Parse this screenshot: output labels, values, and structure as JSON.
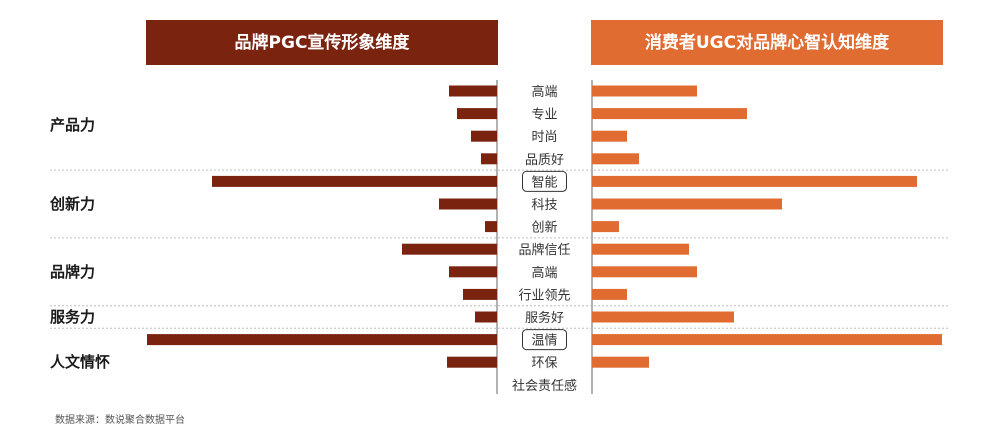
{
  "chart_data": {
    "type": "bar",
    "orientation": "horizontal-butterfly",
    "left_title": "品牌PGC宣传形象维度",
    "right_title": "消费者UGC对品牌心智认知维度",
    "categories": [
      "高端",
      "专业",
      "时尚",
      "品质好",
      "智能",
      "科技",
      "创新",
      "品牌信任",
      "高端",
      "行业领先",
      "服务好",
      "温情",
      "环保",
      "社会责任感"
    ],
    "highlighted": [
      "智能",
      "温情"
    ],
    "series": [
      {
        "side": "left",
        "values": [
          48,
          40,
          26,
          16,
          285,
          58,
          12,
          95,
          48,
          34,
          22,
          350,
          50,
          0
        ]
      },
      {
        "side": "right",
        "values": [
          105,
          155,
          35,
          47,
          325,
          190,
          27,
          97,
          105,
          35,
          142,
          350,
          57,
          0
        ]
      }
    ],
    "groups": [
      {
        "label": "产品力",
        "categories": [
          "高端",
          "专业",
          "时尚",
          "品质好"
        ]
      },
      {
        "label": "创新力",
        "categories": [
          "智能",
          "科技",
          "创新"
        ]
      },
      {
        "label": "品牌力",
        "categories": [
          "品牌信任",
          "高端",
          "行业领先"
        ]
      },
      {
        "label": "服务力",
        "categories": [
          "服务好"
        ]
      },
      {
        "label": "人文情怀",
        "categories": [
          "温情",
          "环保",
          "社会责任感"
        ]
      }
    ],
    "colors": {
      "left_bar": "#7a2410",
      "right_bar": "#e06c32",
      "left_header": "#7a2410",
      "right_header": "#e06c32",
      "divider": "#bdbdbd"
    },
    "source": "数据来源：数说聚合数据平台"
  }
}
